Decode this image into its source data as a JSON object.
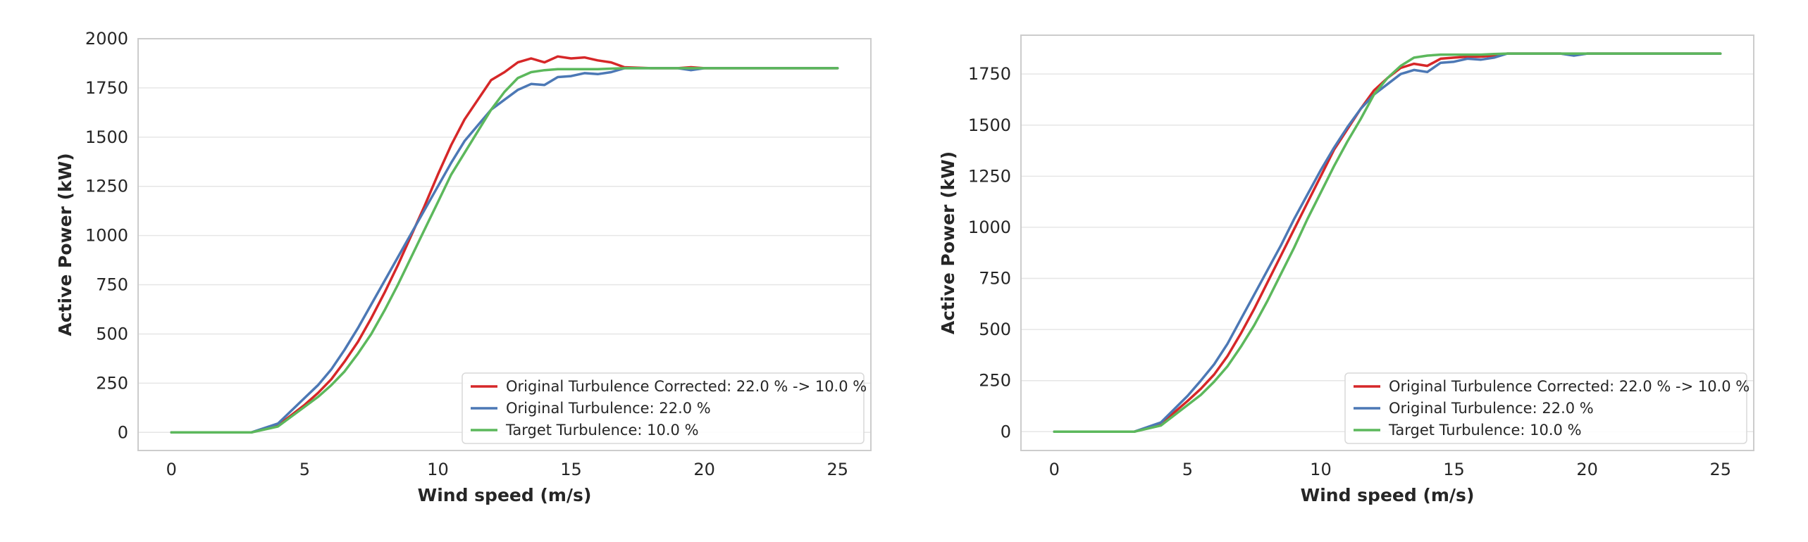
{
  "chart_data": [
    {
      "type": "line",
      "xlabel": "Wind speed (m/s)",
      "ylabel": "Active Power (kW)",
      "xlim": [
        -1.25,
        26.25
      ],
      "ylim": [
        -92,
        2000
      ],
      "xticks": [
        0,
        5,
        10,
        15,
        20,
        25
      ],
      "yticks": [
        0,
        250,
        500,
        750,
        1000,
        1250,
        1500,
        1750,
        2000
      ],
      "grid": true,
      "legend_position": "lower-right",
      "series": [
        {
          "name": "Original Turbulence Corrected: 22.0 % -> 10.0 %",
          "color": "#d62728",
          "x": [
            0,
            1,
            2,
            3,
            4,
            5,
            5.5,
            6,
            6.5,
            7,
            7.5,
            8,
            8.5,
            9,
            9.5,
            10,
            10.5,
            11,
            11.5,
            12,
            12.5,
            13,
            13.5,
            14,
            14.5,
            15,
            15.5,
            16,
            16.5,
            17,
            18,
            19,
            19.5,
            20,
            21,
            22,
            23,
            24,
            25
          ],
          "y": [
            0,
            0,
            0,
            0,
            35,
            140,
            200,
            270,
            360,
            460,
            580,
            710,
            850,
            1000,
            1150,
            1310,
            1460,
            1590,
            1690,
            1790,
            1830,
            1880,
            1900,
            1880,
            1910,
            1900,
            1905,
            1890,
            1880,
            1855,
            1850,
            1850,
            1855,
            1850,
            1850,
            1850,
            1850,
            1850,
            1850
          ]
        },
        {
          "name": "Original Turbulence: 22.0 %",
          "color": "#4c78b5",
          "x": [
            0,
            1,
            2,
            3,
            4,
            5,
            5.5,
            6,
            6.5,
            7,
            7.5,
            8,
            8.5,
            9,
            9.5,
            10,
            10.5,
            11,
            11.5,
            12,
            12.5,
            13,
            13.5,
            14,
            14.5,
            15,
            15.5,
            16,
            16.5,
            17,
            18,
            19,
            19.5,
            20,
            21,
            22,
            23,
            24,
            25
          ],
          "y": [
            0,
            0,
            0,
            0,
            45,
            175,
            240,
            320,
            420,
            530,
            650,
            770,
            890,
            1010,
            1130,
            1250,
            1370,
            1480,
            1560,
            1640,
            1690,
            1740,
            1770,
            1765,
            1805,
            1810,
            1825,
            1820,
            1830,
            1850,
            1850,
            1850,
            1840,
            1850,
            1850,
            1850,
            1850,
            1850,
            1850
          ]
        },
        {
          "name": "Target Turbulence: 10.0 %",
          "color": "#5cb85c",
          "x": [
            0,
            1,
            2,
            3,
            4,
            5,
            5.5,
            6,
            6.5,
            7,
            7.5,
            8,
            8.5,
            9,
            9.5,
            10,
            10.5,
            11,
            11.5,
            12,
            12.5,
            13,
            13.5,
            14,
            14.5,
            15,
            15.5,
            16,
            16.5,
            17,
            18,
            19,
            19.5,
            20,
            21,
            22,
            23,
            24,
            25
          ],
          "y": [
            0,
            0,
            0,
            0,
            30,
            130,
            180,
            240,
            310,
            400,
            500,
            620,
            750,
            890,
            1030,
            1170,
            1310,
            1420,
            1530,
            1640,
            1730,
            1800,
            1830,
            1840,
            1845,
            1845,
            1845,
            1845,
            1848,
            1850,
            1850,
            1850,
            1850,
            1850,
            1850,
            1850,
            1850,
            1850,
            1850
          ]
        }
      ]
    },
    {
      "type": "line",
      "xlabel": "Wind speed (m/s)",
      "ylabel": "Active Power (kW)",
      "xlim": [
        -1.25,
        26.25
      ],
      "ylim": [
        -92,
        1940
      ],
      "xticks": [
        0,
        5,
        10,
        15,
        20,
        25
      ],
      "yticks": [
        0,
        250,
        500,
        750,
        1000,
        1250,
        1500,
        1750
      ],
      "grid": true,
      "legend_position": "lower-right",
      "series": [
        {
          "name": "Original Turbulence Corrected: 22.0 % -> 10.0 %",
          "color": "#d62728",
          "x": [
            0,
            1,
            2,
            3,
            4,
            5,
            5.5,
            6,
            6.5,
            7,
            7.5,
            8,
            8.5,
            9,
            9.5,
            10,
            10.5,
            11,
            11.5,
            12,
            12.5,
            13,
            13.5,
            14,
            14.5,
            15,
            15.5,
            16,
            16.5,
            17,
            18,
            19,
            19.5,
            20,
            21,
            22,
            23,
            24,
            25
          ],
          "y": [
            0,
            0,
            0,
            0,
            38,
            150,
            210,
            280,
            370,
            480,
            600,
            730,
            860,
            990,
            1120,
            1250,
            1380,
            1480,
            1580,
            1670,
            1730,
            1780,
            1800,
            1790,
            1825,
            1830,
            1835,
            1835,
            1840,
            1850,
            1850,
            1850,
            1845,
            1850,
            1850,
            1850,
            1850,
            1850,
            1850
          ]
        },
        {
          "name": "Original Turbulence: 22.0 %",
          "color": "#4c78b5",
          "x": [
            0,
            1,
            2,
            3,
            4,
            5,
            5.5,
            6,
            6.5,
            7,
            7.5,
            8,
            8.5,
            9,
            9.5,
            10,
            10.5,
            11,
            11.5,
            12,
            12.5,
            13,
            13.5,
            14,
            14.5,
            15,
            15.5,
            16,
            16.5,
            17,
            18,
            19,
            19.5,
            20,
            21,
            22,
            23,
            24,
            25
          ],
          "y": [
            0,
            0,
            0,
            0,
            45,
            175,
            250,
            330,
            430,
            550,
            670,
            790,
            910,
            1040,
            1160,
            1280,
            1390,
            1490,
            1580,
            1650,
            1700,
            1750,
            1770,
            1760,
            1805,
            1810,
            1825,
            1820,
            1830,
            1850,
            1850,
            1850,
            1840,
            1850,
            1850,
            1850,
            1850,
            1850,
            1850
          ]
        },
        {
          "name": "Target Turbulence: 10.0 %",
          "color": "#5cb85c",
          "x": [
            0,
            1,
            2,
            3,
            4,
            5,
            5.5,
            6,
            6.5,
            7,
            7.5,
            8,
            8.5,
            9,
            9.5,
            10,
            10.5,
            11,
            11.5,
            12,
            12.5,
            13,
            13.5,
            14,
            14.5,
            15,
            15.5,
            16,
            16.5,
            17,
            18,
            19,
            19.5,
            20,
            21,
            22,
            23,
            24,
            25
          ],
          "y": [
            0,
            0,
            0,
            0,
            30,
            130,
            180,
            245,
            320,
            415,
            520,
            640,
            770,
            900,
            1040,
            1170,
            1300,
            1420,
            1530,
            1650,
            1730,
            1790,
            1830,
            1840,
            1845,
            1845,
            1845,
            1845,
            1848,
            1850,
            1850,
            1850,
            1850,
            1850,
            1850,
            1850,
            1850,
            1850,
            1850
          ]
        }
      ]
    }
  ]
}
